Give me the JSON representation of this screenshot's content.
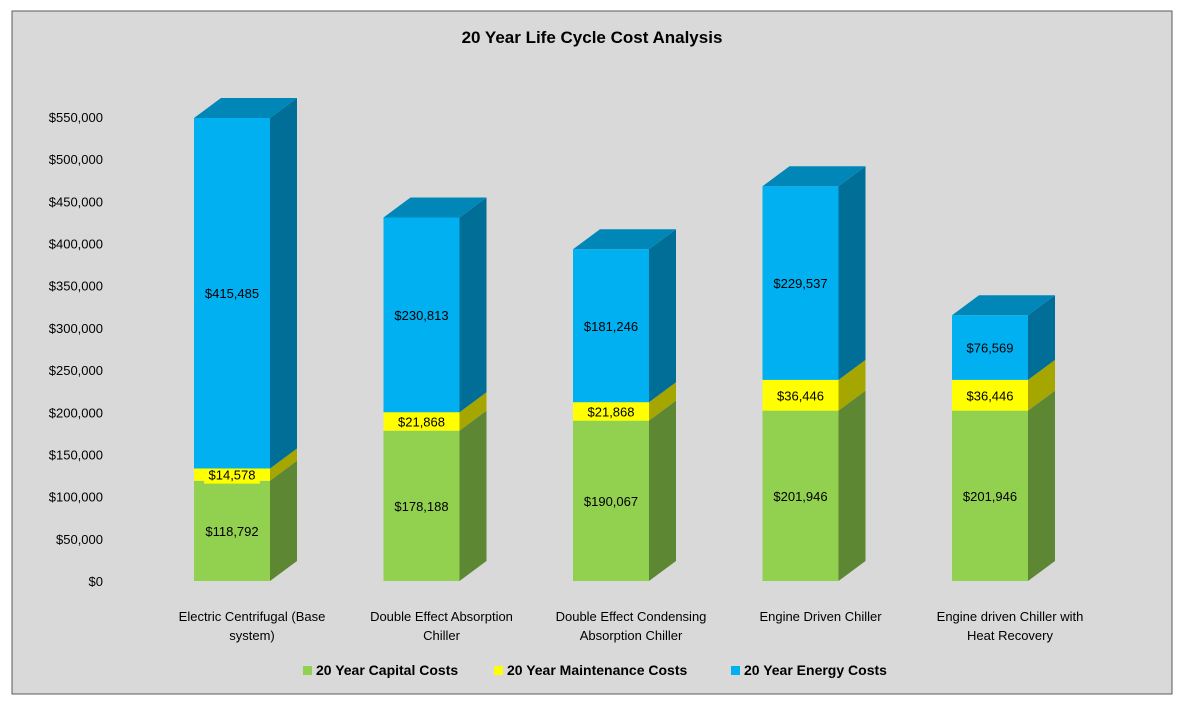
{
  "chart_data": {
    "type": "bar",
    "stacked": true,
    "title": "20 Year Life Cycle Cost Analysis",
    "xlabel": "",
    "ylabel": "",
    "ylim": [
      0,
      550000
    ],
    "y_tick_step": 50000,
    "y_tick_labels": [
      "$0",
      "$50,000",
      "$100,000",
      "$150,000",
      "$200,000",
      "$250,000",
      "$300,000",
      "$350,000",
      "$400,000",
      "$450,000",
      "$500,000",
      "$550,000"
    ],
    "categories": [
      [
        "Electric Centrifugal (Base",
        "system)"
      ],
      [
        "Double Effect Absorption",
        "Chiller"
      ],
      [
        "Double Effect Condensing",
        "Absorption Chiller"
      ],
      [
        "Engine Driven Chiller"
      ],
      [
        "Engine driven Chiller with",
        "Heat Recovery"
      ]
    ],
    "series": [
      {
        "name": "20 Year Capital Costs",
        "color": "#92D050",
        "side_color": "#5E8733",
        "top_color": "#7FB23F",
        "values": [
          118792,
          178188,
          190067,
          201946,
          201946
        ],
        "labels": [
          "$118,792",
          "$178,188",
          "$190,067",
          "$201,946",
          "$201,946"
        ]
      },
      {
        "name": "20 Year Maintenance Costs",
        "color": "#FFFF00",
        "side_color": "#A6A600",
        "top_color": "#D9D900",
        "values": [
          14578,
          21868,
          21868,
          36446,
          36446
        ],
        "labels": [
          "$14,578",
          "$21,868",
          "$21,868",
          "$36,446",
          "$36,446"
        ]
      },
      {
        "name": "20 Year Energy Costs",
        "color": "#00B0F0",
        "side_color": "#006E96",
        "top_color": "#0087B8",
        "values": [
          415485,
          230813,
          181246,
          229537,
          76569
        ],
        "labels": [
          "$415,485",
          "$230,813",
          "$181,246",
          "$229,537",
          "$76,569"
        ]
      }
    ],
    "legend_position": "bottom",
    "grid": false,
    "background_color": "#D9D9D9"
  }
}
